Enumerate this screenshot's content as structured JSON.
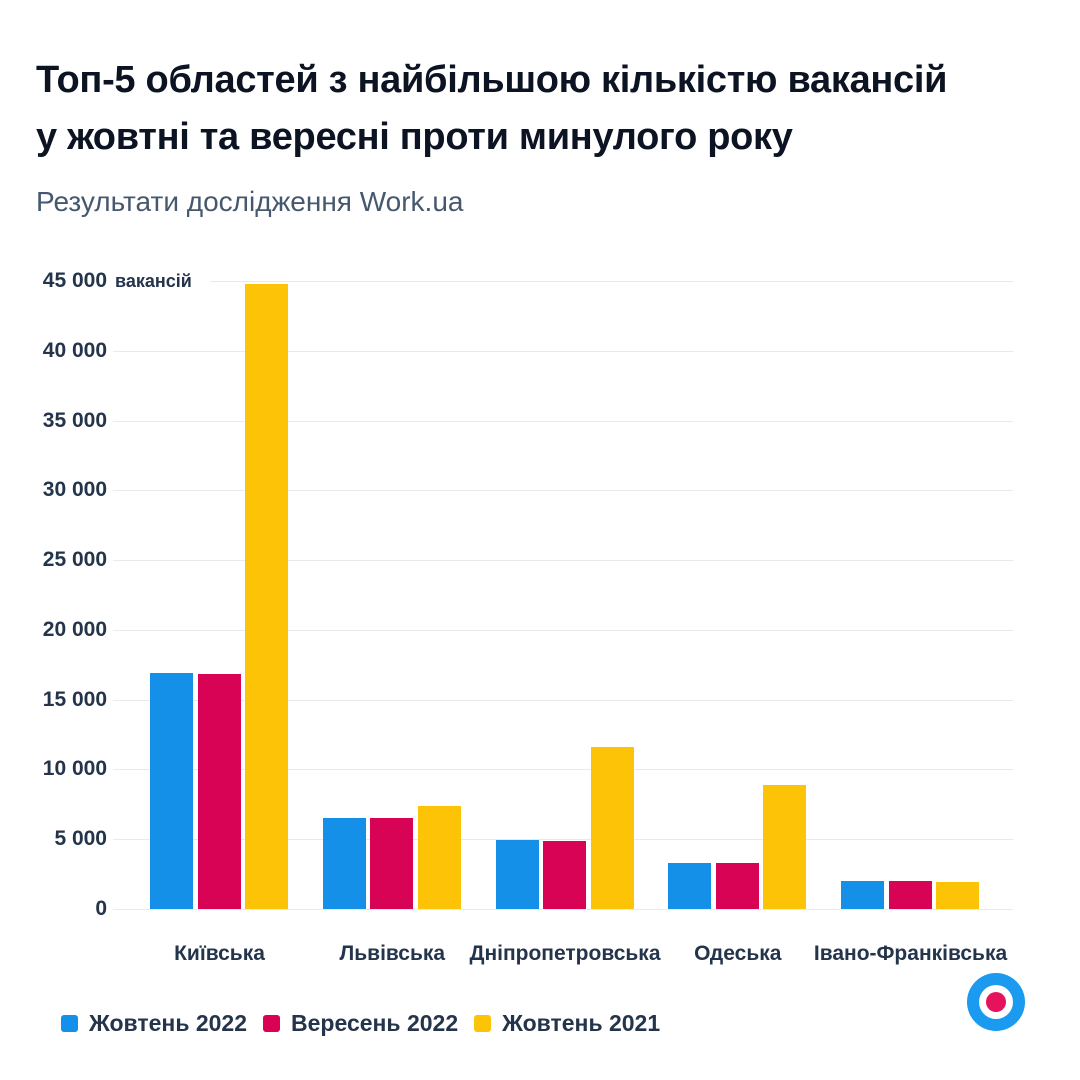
{
  "header": {
    "title_line1": "Топ-5 областей з найбільшою кількістю вакансій",
    "title_line2": "у жовтні та вересні проти минулого року",
    "subtitle": "Результати дослідження Work.ua"
  },
  "chart_data": {
    "type": "bar",
    "categories": [
      "Київська",
      "Львівська",
      "Дніпропетровська",
      "Одеська",
      "Івано-Франківська"
    ],
    "series": [
      {
        "name": "Жовтень 2022",
        "color": "#1590e9",
        "values": [
          16900,
          6500,
          4950,
          3300,
          2000
        ]
      },
      {
        "name": "Вересень 2022",
        "color": "#d90356",
        "values": [
          16850,
          6550,
          4850,
          3300,
          2000
        ]
      },
      {
        "name": "Жовтень 2021",
        "color": "#fdc407",
        "values": [
          44800,
          7400,
          11600,
          8900,
          1950
        ]
      }
    ],
    "title": "Топ-5 областей з найбільшою кількістю вакансій у жовтні та вересні проти минулого року",
    "subtitle": "Результати дослідження Work.ua",
    "xlabel": "",
    "ylabel": "",
    "ylim": [
      0,
      45000
    ],
    "ytick_step": 5000,
    "ytick_labels": [
      "0",
      "5 000",
      "10 000",
      "15 000",
      "20 000",
      "25 000",
      "30 000",
      "35 000",
      "40 000",
      "45 000"
    ],
    "y_unit_suffix": "вакансій",
    "grid": true,
    "legend_position": "bottom-left"
  },
  "logo": {
    "name": "work-ua-logo",
    "outer_color": "#1a9bef",
    "mid_color": "#ffffff",
    "dot_color": "#e6125c"
  },
  "colors": {
    "background": "#ffffff",
    "title_text": "#0c1322",
    "subtitle_text": "#46586e",
    "axis_text": "#24344b",
    "gridline": "#e8ebee"
  }
}
